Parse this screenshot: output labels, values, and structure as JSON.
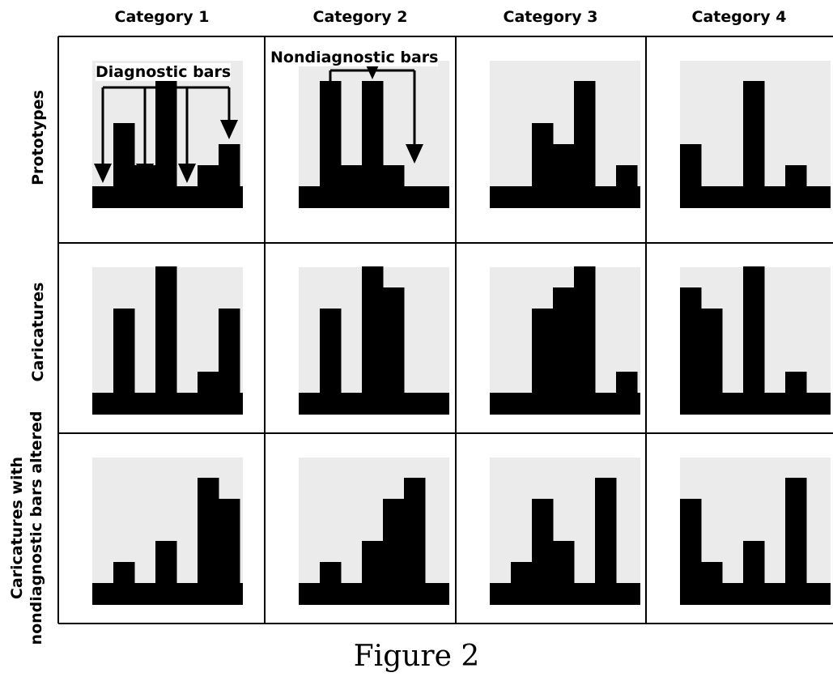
{
  "column_headers": [
    "Category 1",
    "Category 2",
    "Category 3",
    "Category 4"
  ],
  "row_labels": [
    "Prototypes",
    "Caricatures",
    "Caricatures with nondiagnostic bars altered"
  ],
  "row_label_lines": [
    [
      "Prototypes"
    ],
    [
      "Caricatures"
    ],
    [
      "Caricatures with",
      "nondiagnostic bars altered"
    ]
  ],
  "annotations": {
    "diagnostic_bars": "Diagnostic bars",
    "nondiagnostic_bars": "Nondiagnostic bars"
  },
  "caption": "Figure 2",
  "colors": {
    "bars": "#000000",
    "grid_lines": "#000000",
    "panel_background": "#ebebeb"
  },
  "panels": [
    [
      {
        "bars": [
          0,
          3,
          1,
          5,
          0,
          1,
          2
        ]
      },
      {
        "bars": [
          0,
          5,
          1,
          5,
          1,
          0,
          0
        ]
      },
      {
        "bars": [
          0,
          0,
          3,
          2,
          5,
          0,
          1
        ]
      },
      {
        "bars": [
          2,
          0,
          0,
          5,
          0,
          1,
          0
        ]
      }
    ],
    [
      {
        "bars": [
          0,
          4,
          0,
          6,
          0,
          1,
          4
        ]
      },
      {
        "bars": [
          0,
          4,
          0,
          6,
          5,
          0,
          0
        ]
      },
      {
        "bars": [
          0,
          0,
          4,
          5,
          6,
          0,
          1
        ]
      },
      {
        "bars": [
          5,
          4,
          0,
          6,
          0,
          1,
          0
        ]
      }
    ],
    [
      {
        "bars": [
          0,
          1,
          0,
          2,
          0,
          5,
          4
        ]
      },
      {
        "bars": [
          0,
          1,
          0,
          2,
          4,
          5,
          0
        ]
      },
      {
        "bars": [
          0,
          1,
          4,
          2,
          0,
          5,
          0
        ]
      },
      {
        "bars": [
          4,
          1,
          0,
          2,
          0,
          5,
          0
        ]
      }
    ]
  ]
}
